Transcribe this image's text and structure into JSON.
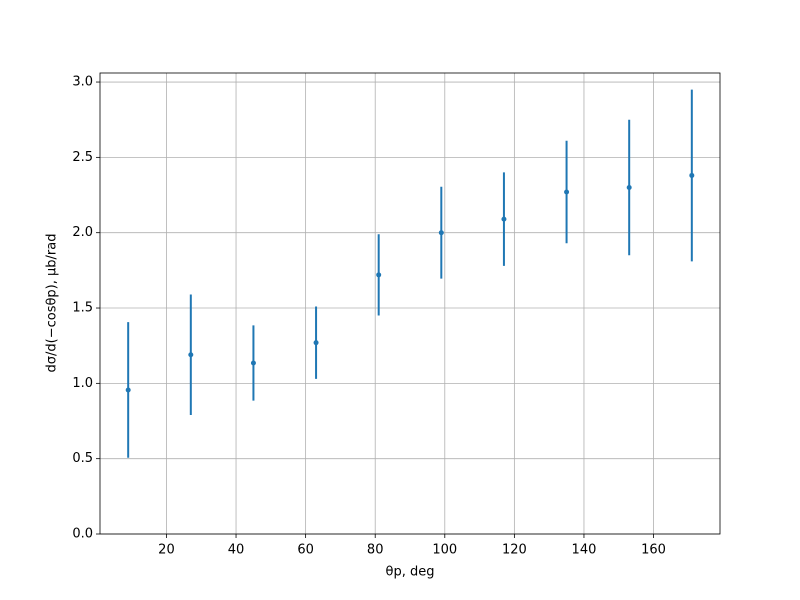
{
  "chart_data": {
    "type": "errorbar",
    "xlabel": "θp, deg",
    "ylabel": "dσ/d(−cosθp), µb/rad",
    "x": [
      9,
      27,
      45,
      63,
      81,
      99,
      117,
      135,
      153,
      171
    ],
    "values": [
      0.956,
      1.19,
      1.135,
      1.27,
      1.72,
      2.0,
      2.09,
      2.27,
      2.3,
      2.38
    ],
    "errors": [
      0.45,
      0.4,
      0.25,
      0.24,
      0.27,
      0.305,
      0.31,
      0.34,
      0.45,
      0.57
    ],
    "color": "#1f77b4",
    "xlim": [
      0.9,
      179.1
    ],
    "ylim": [
      0,
      3.06
    ],
    "xticks": [
      20,
      40,
      60,
      80,
      100,
      120,
      140,
      160
    ],
    "yticks": [
      {
        "value": 0,
        "label": "0.0"
      },
      {
        "value": 0.5,
        "label": "0.5"
      },
      {
        "value": 1,
        "label": "1.0"
      },
      {
        "value": 1.5,
        "label": "1.5"
      },
      {
        "value": 2,
        "label": "2.0"
      },
      {
        "value": 2.5,
        "label": "2.5"
      },
      {
        "value": 3,
        "label": "3.0"
      }
    ],
    "grid": true
  }
}
